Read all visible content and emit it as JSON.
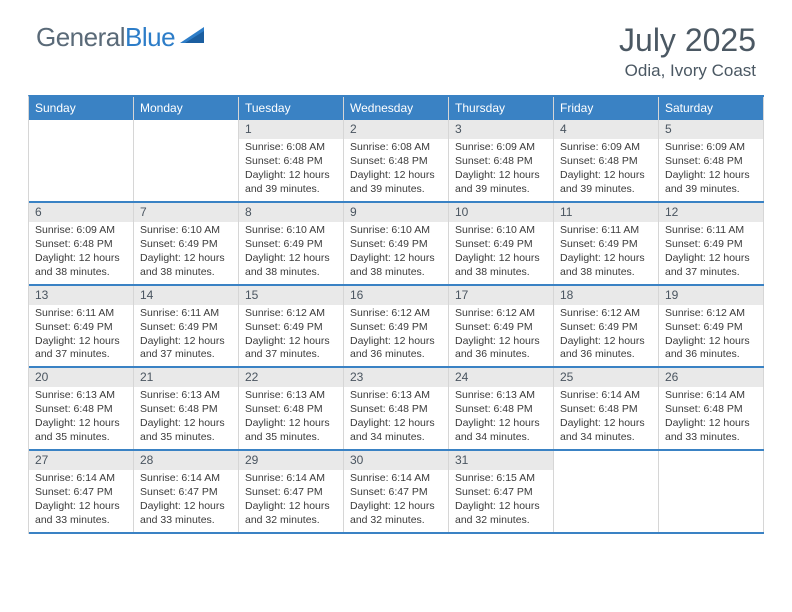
{
  "brand": {
    "word1": "General",
    "word2": "Blue"
  },
  "title": "July 2025",
  "location": "Odia, Ivory Coast",
  "colors": {
    "header_bg": "#3a82c4",
    "header_text": "#ffffff",
    "daynum_bg": "#e9e9e9",
    "body_text": "#333333",
    "title_text": "#4b5863",
    "rule": "#3a82c4",
    "cell_border": "#d6d6d6"
  },
  "typography": {
    "title_fontsize": 32,
    "location_fontsize": 17,
    "dayhead_fontsize": 12,
    "daynum_fontsize": 12,
    "info_fontsize": 10.5
  },
  "day_headers": [
    "Sunday",
    "Monday",
    "Tuesday",
    "Wednesday",
    "Thursday",
    "Friday",
    "Saturday"
  ],
  "weeks": [
    [
      {
        "n": "",
        "empty": true
      },
      {
        "n": "",
        "empty": true
      },
      {
        "n": "1",
        "sr": "Sunrise: 6:08 AM",
        "ss": "Sunset: 6:48 PM",
        "d1": "Daylight: 12 hours",
        "d2": "and 39 minutes."
      },
      {
        "n": "2",
        "sr": "Sunrise: 6:08 AM",
        "ss": "Sunset: 6:48 PM",
        "d1": "Daylight: 12 hours",
        "d2": "and 39 minutes."
      },
      {
        "n": "3",
        "sr": "Sunrise: 6:09 AM",
        "ss": "Sunset: 6:48 PM",
        "d1": "Daylight: 12 hours",
        "d2": "and 39 minutes."
      },
      {
        "n": "4",
        "sr": "Sunrise: 6:09 AM",
        "ss": "Sunset: 6:48 PM",
        "d1": "Daylight: 12 hours",
        "d2": "and 39 minutes."
      },
      {
        "n": "5",
        "sr": "Sunrise: 6:09 AM",
        "ss": "Sunset: 6:48 PM",
        "d1": "Daylight: 12 hours",
        "d2": "and 39 minutes."
      }
    ],
    [
      {
        "n": "6",
        "sr": "Sunrise: 6:09 AM",
        "ss": "Sunset: 6:48 PM",
        "d1": "Daylight: 12 hours",
        "d2": "and 38 minutes."
      },
      {
        "n": "7",
        "sr": "Sunrise: 6:10 AM",
        "ss": "Sunset: 6:49 PM",
        "d1": "Daylight: 12 hours",
        "d2": "and 38 minutes."
      },
      {
        "n": "8",
        "sr": "Sunrise: 6:10 AM",
        "ss": "Sunset: 6:49 PM",
        "d1": "Daylight: 12 hours",
        "d2": "and 38 minutes."
      },
      {
        "n": "9",
        "sr": "Sunrise: 6:10 AM",
        "ss": "Sunset: 6:49 PM",
        "d1": "Daylight: 12 hours",
        "d2": "and 38 minutes."
      },
      {
        "n": "10",
        "sr": "Sunrise: 6:10 AM",
        "ss": "Sunset: 6:49 PM",
        "d1": "Daylight: 12 hours",
        "d2": "and 38 minutes."
      },
      {
        "n": "11",
        "sr": "Sunrise: 6:11 AM",
        "ss": "Sunset: 6:49 PM",
        "d1": "Daylight: 12 hours",
        "d2": "and 38 minutes."
      },
      {
        "n": "12",
        "sr": "Sunrise: 6:11 AM",
        "ss": "Sunset: 6:49 PM",
        "d1": "Daylight: 12 hours",
        "d2": "and 37 minutes."
      }
    ],
    [
      {
        "n": "13",
        "sr": "Sunrise: 6:11 AM",
        "ss": "Sunset: 6:49 PM",
        "d1": "Daylight: 12 hours",
        "d2": "and 37 minutes."
      },
      {
        "n": "14",
        "sr": "Sunrise: 6:11 AM",
        "ss": "Sunset: 6:49 PM",
        "d1": "Daylight: 12 hours",
        "d2": "and 37 minutes."
      },
      {
        "n": "15",
        "sr": "Sunrise: 6:12 AM",
        "ss": "Sunset: 6:49 PM",
        "d1": "Daylight: 12 hours",
        "d2": "and 37 minutes."
      },
      {
        "n": "16",
        "sr": "Sunrise: 6:12 AM",
        "ss": "Sunset: 6:49 PM",
        "d1": "Daylight: 12 hours",
        "d2": "and 36 minutes."
      },
      {
        "n": "17",
        "sr": "Sunrise: 6:12 AM",
        "ss": "Sunset: 6:49 PM",
        "d1": "Daylight: 12 hours",
        "d2": "and 36 minutes."
      },
      {
        "n": "18",
        "sr": "Sunrise: 6:12 AM",
        "ss": "Sunset: 6:49 PM",
        "d1": "Daylight: 12 hours",
        "d2": "and 36 minutes."
      },
      {
        "n": "19",
        "sr": "Sunrise: 6:12 AM",
        "ss": "Sunset: 6:49 PM",
        "d1": "Daylight: 12 hours",
        "d2": "and 36 minutes."
      }
    ],
    [
      {
        "n": "20",
        "sr": "Sunrise: 6:13 AM",
        "ss": "Sunset: 6:48 PM",
        "d1": "Daylight: 12 hours",
        "d2": "and 35 minutes."
      },
      {
        "n": "21",
        "sr": "Sunrise: 6:13 AM",
        "ss": "Sunset: 6:48 PM",
        "d1": "Daylight: 12 hours",
        "d2": "and 35 minutes."
      },
      {
        "n": "22",
        "sr": "Sunrise: 6:13 AM",
        "ss": "Sunset: 6:48 PM",
        "d1": "Daylight: 12 hours",
        "d2": "and 35 minutes."
      },
      {
        "n": "23",
        "sr": "Sunrise: 6:13 AM",
        "ss": "Sunset: 6:48 PM",
        "d1": "Daylight: 12 hours",
        "d2": "and 34 minutes."
      },
      {
        "n": "24",
        "sr": "Sunrise: 6:13 AM",
        "ss": "Sunset: 6:48 PM",
        "d1": "Daylight: 12 hours",
        "d2": "and 34 minutes."
      },
      {
        "n": "25",
        "sr": "Sunrise: 6:14 AM",
        "ss": "Sunset: 6:48 PM",
        "d1": "Daylight: 12 hours",
        "d2": "and 34 minutes."
      },
      {
        "n": "26",
        "sr": "Sunrise: 6:14 AM",
        "ss": "Sunset: 6:48 PM",
        "d1": "Daylight: 12 hours",
        "d2": "and 33 minutes."
      }
    ],
    [
      {
        "n": "27",
        "sr": "Sunrise: 6:14 AM",
        "ss": "Sunset: 6:47 PM",
        "d1": "Daylight: 12 hours",
        "d2": "and 33 minutes."
      },
      {
        "n": "28",
        "sr": "Sunrise: 6:14 AM",
        "ss": "Sunset: 6:47 PM",
        "d1": "Daylight: 12 hours",
        "d2": "and 33 minutes."
      },
      {
        "n": "29",
        "sr": "Sunrise: 6:14 AM",
        "ss": "Sunset: 6:47 PM",
        "d1": "Daylight: 12 hours",
        "d2": "and 32 minutes."
      },
      {
        "n": "30",
        "sr": "Sunrise: 6:14 AM",
        "ss": "Sunset: 6:47 PM",
        "d1": "Daylight: 12 hours",
        "d2": "and 32 minutes."
      },
      {
        "n": "31",
        "sr": "Sunrise: 6:15 AM",
        "ss": "Sunset: 6:47 PM",
        "d1": "Daylight: 12 hours",
        "d2": "and 32 minutes."
      },
      {
        "n": "",
        "empty": true
      },
      {
        "n": "",
        "empty": true
      }
    ]
  ]
}
